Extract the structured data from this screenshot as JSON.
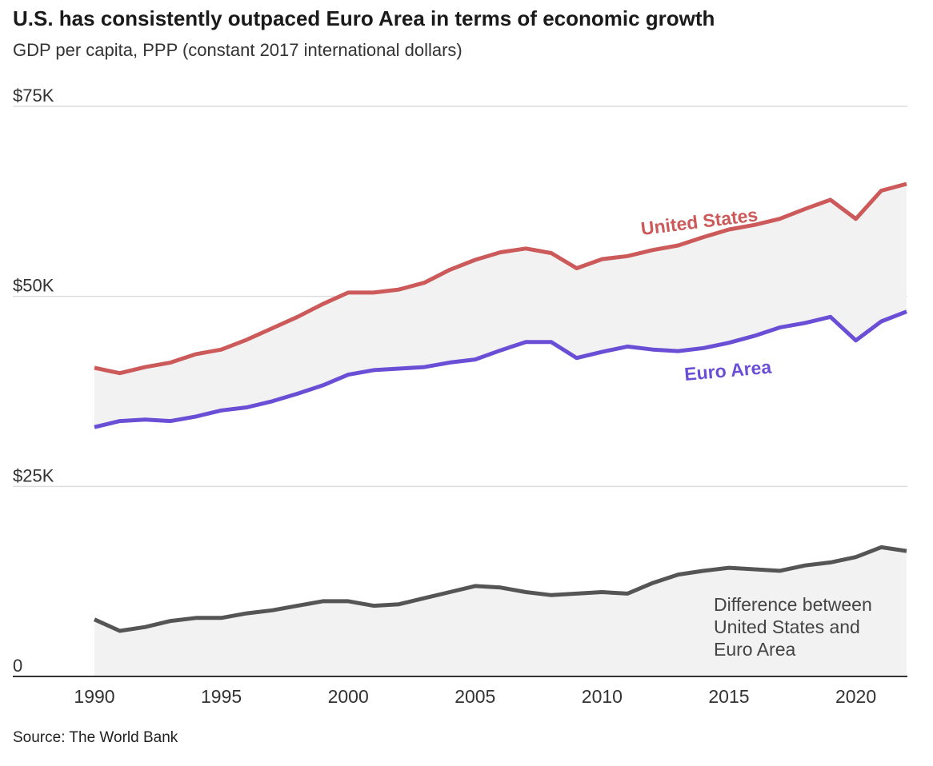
{
  "title": "U.S. has consistently outpaced Euro Area in terms of economic growth",
  "subtitle": "GDP per capita, PPP (constant 2017 international dollars)",
  "source": "Source: The World Bank",
  "colors": {
    "us": "#cc5a5a",
    "euro": "#6a4fd6",
    "difference": "#555555",
    "fill": "#f2f2f2",
    "grid": "#dddddd",
    "axis": "#333333"
  },
  "chart_data": {
    "type": "line",
    "x": [
      1990,
      1991,
      1992,
      1993,
      1994,
      1995,
      1996,
      1997,
      1998,
      1999,
      2000,
      2001,
      2002,
      2003,
      2004,
      2005,
      2006,
      2007,
      2008,
      2009,
      2010,
      2011,
      2012,
      2013,
      2014,
      2015,
      2016,
      2017,
      2018,
      2019,
      2020,
      2021,
      2022
    ],
    "xticks": [
      1990,
      1995,
      2000,
      2005,
      2010,
      2015,
      2020
    ],
    "xlim": [
      1990,
      2022
    ],
    "ylim": [
      0,
      75000
    ],
    "yticks": [
      {
        "value": 0,
        "label": "0"
      },
      {
        "value": 25000,
        "label": "$25K"
      },
      {
        "value": 50000,
        "label": "$50K"
      },
      {
        "value": 75000,
        "label": "$75K"
      }
    ],
    "grid": true,
    "series": [
      {
        "key": "us",
        "name": "United States",
        "values": [
          40600,
          39900,
          40700,
          41300,
          42400,
          43000,
          44300,
          45800,
          47300,
          49000,
          50500,
          50500,
          50900,
          51800,
          53500,
          54800,
          55800,
          56300,
          55700,
          53700,
          54900,
          55300,
          56100,
          56700,
          57800,
          58800,
          59400,
          60200,
          61500,
          62700,
          60200,
          63900,
          64800
        ]
      },
      {
        "key": "euro",
        "name": "Euro Area",
        "values": [
          32800,
          33600,
          33800,
          33600,
          34200,
          35000,
          35400,
          36200,
          37200,
          38300,
          39700,
          40300,
          40500,
          40700,
          41300,
          41700,
          42900,
          44000,
          44000,
          41900,
          42700,
          43400,
          43000,
          42800,
          43200,
          43900,
          44800,
          45900,
          46500,
          47300,
          44200,
          46700,
          48000
        ]
      },
      {
        "key": "difference",
        "name": "Difference between United States and Euro Area",
        "values": [
          7500,
          6000,
          6500,
          7300,
          7700,
          7700,
          8300,
          8700,
          9300,
          9900,
          9900,
          9300,
          9500,
          10300,
          11100,
          11900,
          11700,
          11100,
          10700,
          10900,
          11100,
          10900,
          12300,
          13400,
          13900,
          14300,
          14100,
          13900,
          14600,
          15000,
          15700,
          17000,
          16500
        ]
      }
    ],
    "annotations": {
      "us": "United States",
      "euro": "Euro Area",
      "difference": [
        "Difference between",
        "United States and",
        "Euro Area"
      ]
    }
  }
}
